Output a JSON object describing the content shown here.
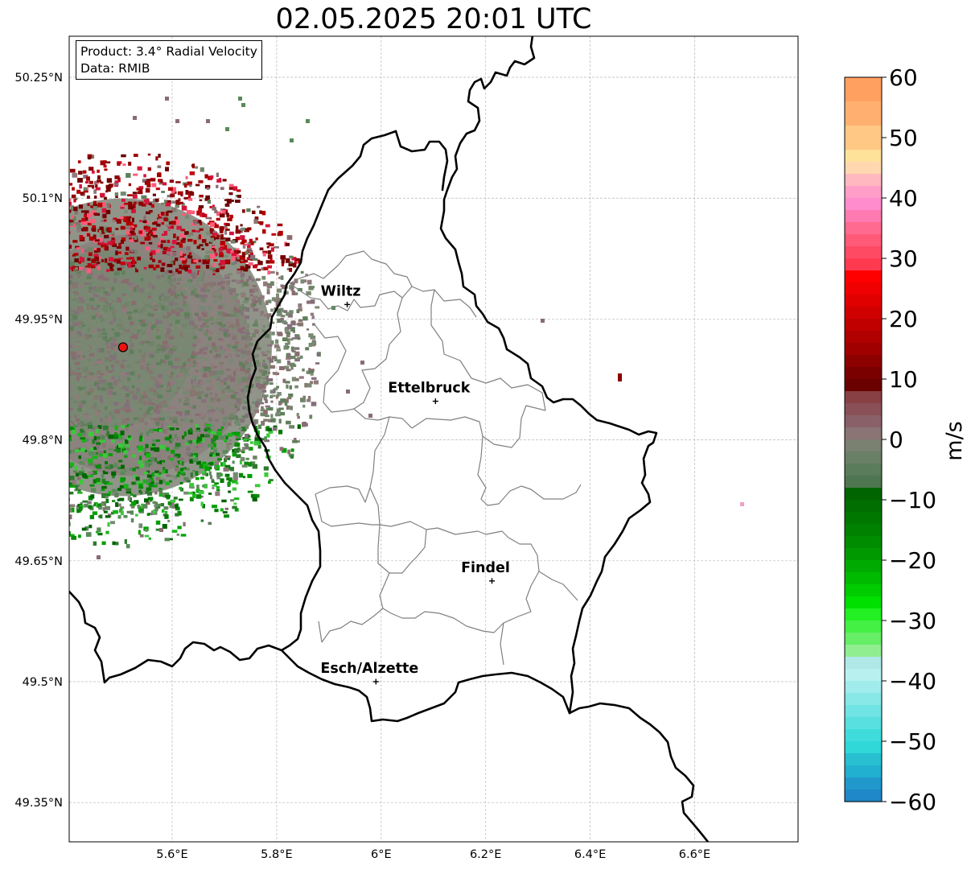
{
  "title": "02.05.2025 20:01 UTC",
  "info": {
    "product": "Product: 3.4° Radial Velocity",
    "data": "Data: RMIB"
  },
  "map": {
    "lat_labels": [
      {
        "text": "50.25°N",
        "lat": 50.25
      },
      {
        "text": "50.1°N",
        "lat": 50.1
      },
      {
        "text": "49.95°N",
        "lat": 49.95
      },
      {
        "text": "49.8°N",
        "lat": 49.8
      },
      {
        "text": "49.65°N",
        "lat": 49.65
      },
      {
        "text": "49.5°N",
        "lat": 49.5
      },
      {
        "text": "49.35°N",
        "lat": 49.35
      }
    ],
    "lon_labels": [
      {
        "text": "5.6°E",
        "lon": 5.6
      },
      {
        "text": "5.8°E",
        "lon": 5.8
      },
      {
        "text": "6°E",
        "lon": 6.0
      },
      {
        "text": "6.2°E",
        "lon": 6.2
      },
      {
        "text": "6.4°E",
        "lon": 6.4
      },
      {
        "text": "6.6°E",
        "lon": 6.6
      }
    ],
    "cities": [
      {
        "name": "Wiltz",
        "lon": 5.935,
        "lat": 49.968
      },
      {
        "name": "Ettelbruck",
        "lon": 6.104,
        "lat": 49.848
      },
      {
        "name": "Findel",
        "lon": 6.212,
        "lat": 49.625
      },
      {
        "name": "Esch/Alzette",
        "lon": 5.99,
        "lat": 49.5
      }
    ],
    "radar_site": {
      "lon": 5.506,
      "lat": 49.915,
      "color": "#ee1111"
    }
  },
  "colorbar": {
    "label": "m/s",
    "min": -60,
    "max": 60,
    "ticks": [
      {
        "value": 60,
        "text": "60"
      },
      {
        "value": 50,
        "text": "50"
      },
      {
        "value": 40,
        "text": "40"
      },
      {
        "value": 30,
        "text": "30"
      },
      {
        "value": 20,
        "text": "20"
      },
      {
        "value": 10,
        "text": "10"
      },
      {
        "value": 0,
        "text": "0"
      },
      {
        "value": -10,
        "text": "−10"
      },
      {
        "value": -20,
        "text": "−20"
      },
      {
        "value": -30,
        "text": "−30"
      },
      {
        "value": -40,
        "text": "−40"
      },
      {
        "value": -50,
        "text": "−50"
      },
      {
        "value": -60,
        "text": "−60"
      }
    ],
    "stops": [
      {
        "from": 56,
        "to": 60,
        "color": "#ffa060"
      },
      {
        "from": 52,
        "to": 56,
        "color": "#ffb070"
      },
      {
        "from": 48,
        "to": 52,
        "color": "#ffc884"
      },
      {
        "from": 46,
        "to": 48,
        "color": "#ffe29a"
      },
      {
        "from": 44,
        "to": 46,
        "color": "#ffd8b0"
      },
      {
        "from": 42,
        "to": 44,
        "color": "#ffb8c0"
      },
      {
        "from": 40,
        "to": 42,
        "color": "#ff9ec8"
      },
      {
        "from": 38,
        "to": 40,
        "color": "#ff8ccc"
      },
      {
        "from": 36,
        "to": 38,
        "color": "#ff7ab0"
      },
      {
        "from": 34,
        "to": 36,
        "color": "#ff6a90"
      },
      {
        "from": 32,
        "to": 34,
        "color": "#ff5a78"
      },
      {
        "from": 30,
        "to": 32,
        "color": "#ff4a64"
      },
      {
        "from": 28,
        "to": 30,
        "color": "#ff3a50"
      },
      {
        "from": 26,
        "to": 28,
        "color": "#ff0000"
      },
      {
        "from": 24,
        "to": 26,
        "color": "#f00000"
      },
      {
        "from": 22,
        "to": 24,
        "color": "#e00000"
      },
      {
        "from": 20,
        "to": 22,
        "color": "#d00000"
      },
      {
        "from": 18,
        "to": 20,
        "color": "#c00000"
      },
      {
        "from": 16,
        "to": 18,
        "color": "#b00000"
      },
      {
        "from": 14,
        "to": 16,
        "color": "#a00000"
      },
      {
        "from": 12,
        "to": 14,
        "color": "#8c0000"
      },
      {
        "from": 10,
        "to": 12,
        "color": "#7a0000"
      },
      {
        "from": 8,
        "to": 10,
        "color": "#6a0000"
      },
      {
        "from": 6,
        "to": 8,
        "color": "#884044"
      },
      {
        "from": 4,
        "to": 6,
        "color": "#8a5058"
      },
      {
        "from": 2,
        "to": 4,
        "color": "#8a6068"
      },
      {
        "from": 0,
        "to": 2,
        "color": "#8a7474"
      },
      {
        "from": -2,
        "to": 0,
        "color": "#7a8070"
      },
      {
        "from": -4,
        "to": -2,
        "color": "#6a8066"
      },
      {
        "from": -6,
        "to": -4,
        "color": "#5a7c5a"
      },
      {
        "from": -8,
        "to": -6,
        "color": "#4e7650"
      },
      {
        "from": -10,
        "to": -8,
        "color": "#006400"
      },
      {
        "from": -12,
        "to": -10,
        "color": "#006e00"
      },
      {
        "from": -14,
        "to": -12,
        "color": "#007800"
      },
      {
        "from": -16,
        "to": -14,
        "color": "#008200"
      },
      {
        "from": -18,
        "to": -16,
        "color": "#008c00"
      },
      {
        "from": -20,
        "to": -18,
        "color": "#009a00"
      },
      {
        "from": -22,
        "to": -20,
        "color": "#00aa00"
      },
      {
        "from": -24,
        "to": -22,
        "color": "#00ba00"
      },
      {
        "from": -26,
        "to": -24,
        "color": "#00cc00"
      },
      {
        "from": -28,
        "to": -26,
        "color": "#00e000"
      },
      {
        "from": -30,
        "to": -28,
        "color": "#22f022"
      },
      {
        "from": -32,
        "to": -30,
        "color": "#44f044"
      },
      {
        "from": -34,
        "to": -32,
        "color": "#66ee66"
      },
      {
        "from": -36,
        "to": -34,
        "color": "#90ee90"
      },
      {
        "from": -38,
        "to": -36,
        "color": "#b0e8e8"
      },
      {
        "from": -40,
        "to": -38,
        "color": "#b8f0f0"
      },
      {
        "from": -42,
        "to": -40,
        "color": "#a0ecec"
      },
      {
        "from": -44,
        "to": -42,
        "color": "#88e8e8"
      },
      {
        "from": -46,
        "to": -44,
        "color": "#70e4e4"
      },
      {
        "from": -48,
        "to": -46,
        "color": "#58e0e0"
      },
      {
        "from": -50,
        "to": -48,
        "color": "#40dcdc"
      },
      {
        "from": -52,
        "to": -50,
        "color": "#30d8d8"
      },
      {
        "from": -54,
        "to": -52,
        "color": "#28c0d0"
      },
      {
        "from": -56,
        "to": -54,
        "color": "#22b0d0"
      },
      {
        "from": -58,
        "to": -56,
        "color": "#2098cc"
      },
      {
        "from": -60,
        "to": -58,
        "color": "#1f88c8"
      }
    ]
  },
  "colors": {
    "border": "#000000",
    "canton_lines": "#808080",
    "grid": "#b0b0b0",
    "inbound_green": "#1a8a1a",
    "outbound_red": "#8b0000",
    "near_zero": "#7f8577"
  }
}
